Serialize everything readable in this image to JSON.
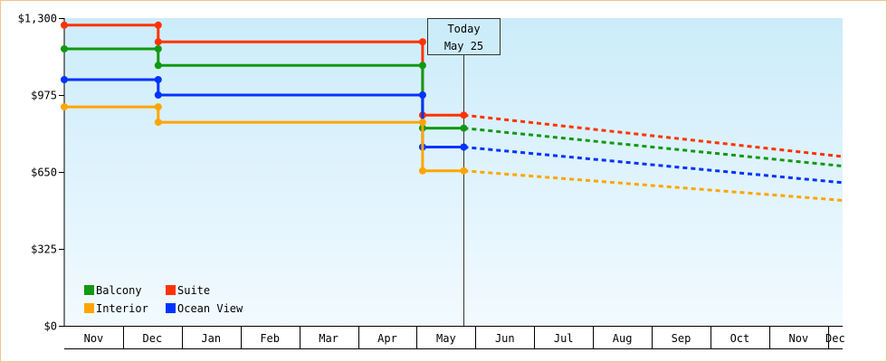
{
  "chart_data": {
    "type": "line",
    "today_marker": {
      "line1": "Today",
      "line2": "May 25"
    },
    "y_ticks": [
      {
        "value": 0,
        "label": "$0"
      },
      {
        "value": 325,
        "label": "$325"
      },
      {
        "value": 650,
        "label": "$650"
      },
      {
        "value": 975,
        "label": "$975"
      },
      {
        "value": 1300,
        "label": "$1,300"
      }
    ],
    "ylim": [
      0,
      1300
    ],
    "month_labels": [
      "Nov",
      "Dec",
      "Jan",
      "Feb",
      "Mar",
      "Apr",
      "May",
      "Jun",
      "Jul",
      "Aug",
      "Sep",
      "Oct",
      "Nov",
      "Dec"
    ],
    "x_unit_note": "months since start of Nov (left axis edge)",
    "xlim": [
      0,
      13.25
    ],
    "today_x": 6.8,
    "series": [
      {
        "name": "Suite",
        "color": "#ff3300",
        "history": [
          [
            0,
            1270
          ],
          [
            1.6,
            1270
          ],
          [
            1.6,
            1200
          ],
          [
            6.1,
            1200
          ],
          [
            6.1,
            890
          ],
          [
            6.8,
            890
          ]
        ],
        "markers": [
          [
            0,
            1270
          ],
          [
            1.6,
            1270
          ],
          [
            1.6,
            1200
          ],
          [
            6.1,
            1200
          ],
          [
            6.1,
            890
          ],
          [
            6.8,
            890
          ]
        ],
        "forecast": [
          [
            6.8,
            890
          ],
          [
            13.25,
            715
          ]
        ]
      },
      {
        "name": "Balcony",
        "color": "#119911",
        "history": [
          [
            0,
            1170
          ],
          [
            1.6,
            1170
          ],
          [
            1.6,
            1100
          ],
          [
            6.1,
            1100
          ],
          [
            6.1,
            835
          ],
          [
            6.8,
            835
          ]
        ],
        "markers": [
          [
            0,
            1170
          ],
          [
            1.6,
            1170
          ],
          [
            1.6,
            1100
          ],
          [
            6.1,
            1100
          ],
          [
            6.1,
            835
          ],
          [
            6.8,
            835
          ]
        ],
        "forecast": [
          [
            6.8,
            835
          ],
          [
            13.25,
            675
          ]
        ]
      },
      {
        "name": "Ocean View",
        "color": "#0033ff",
        "history": [
          [
            0,
            1040
          ],
          [
            1.6,
            1040
          ],
          [
            1.6,
            975
          ],
          [
            6.1,
            975
          ],
          [
            6.1,
            755
          ],
          [
            6.8,
            755
          ]
        ],
        "markers": [
          [
            0,
            1040
          ],
          [
            1.6,
            1040
          ],
          [
            1.6,
            975
          ],
          [
            6.1,
            975
          ],
          [
            6.1,
            755
          ],
          [
            6.8,
            755
          ]
        ],
        "forecast": [
          [
            6.8,
            755
          ],
          [
            13.25,
            605
          ]
        ]
      },
      {
        "name": "Interior",
        "color": "#ffa500",
        "history": [
          [
            0,
            925
          ],
          [
            1.6,
            925
          ],
          [
            1.6,
            860
          ],
          [
            6.1,
            860
          ],
          [
            6.1,
            655
          ],
          [
            6.8,
            655
          ]
        ],
        "markers": [
          [
            0,
            925
          ],
          [
            1.6,
            925
          ],
          [
            1.6,
            860
          ],
          [
            6.1,
            860
          ],
          [
            6.1,
            655
          ],
          [
            6.8,
            655
          ]
        ],
        "forecast": [
          [
            6.8,
            655
          ],
          [
            13.25,
            530
          ]
        ]
      }
    ],
    "legend": {
      "placement": "bottom-left",
      "rows": [
        [
          {
            "label": "Balcony",
            "color": "#119911"
          },
          {
            "label": "Suite",
            "color": "#ff3300"
          }
        ],
        [
          {
            "label": "Interior",
            "color": "#ffa500"
          },
          {
            "label": "Ocean View",
            "color": "#0033ff"
          }
        ]
      ]
    },
    "background_gradient": [
      "#ccecfa",
      "#f2faff"
    ],
    "grid": false
  }
}
